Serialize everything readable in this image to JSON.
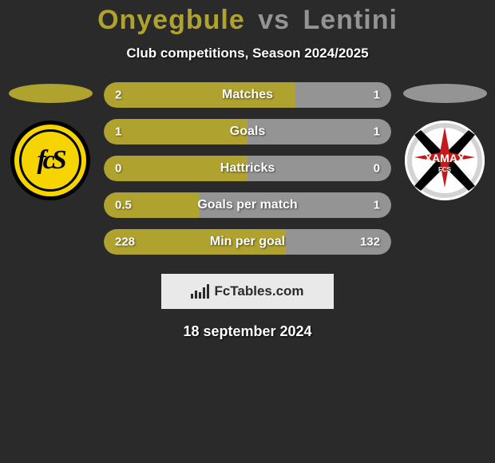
{
  "title": {
    "name1": "Onyegbule",
    "vs": "vs",
    "name2": "Lentini",
    "name1_color": "#b0a22e",
    "name2_color": "#949494"
  },
  "subtitle": "Club competitions, Season 2024/2025",
  "date": "18 september 2024",
  "branding": {
    "text": "FcTables.com",
    "bg_color": "#e9e9e9",
    "text_color": "#2a2a2a"
  },
  "colors": {
    "left_bar": "#b0a22e",
    "right_bar": "#949494",
    "left_ellipse": "#b0a22e",
    "right_ellipse": "#949494",
    "background": "#2a2a2a"
  },
  "stats": [
    {
      "label": "Matches",
      "left_val": "2",
      "right_val": "1",
      "left_pct": 66.7
    },
    {
      "label": "Goals",
      "left_val": "1",
      "right_val": "1",
      "left_pct": 50.0
    },
    {
      "label": "Hattricks",
      "left_val": "0",
      "right_val": "0",
      "left_pct": 50.0
    },
    {
      "label": "Goals per match",
      "left_val": "0.5",
      "right_val": "1",
      "left_pct": 33.3
    },
    {
      "label": "Min per goal",
      "left_val": "228",
      "right_val": "132",
      "left_pct": 63.3
    }
  ],
  "badges": {
    "left": {
      "name": "fc-schaffhausen",
      "mono": "fcS"
    },
    "right": {
      "name": "neuchatel-xamax",
      "label": "XAMAX",
      "sub": "FCS"
    }
  }
}
